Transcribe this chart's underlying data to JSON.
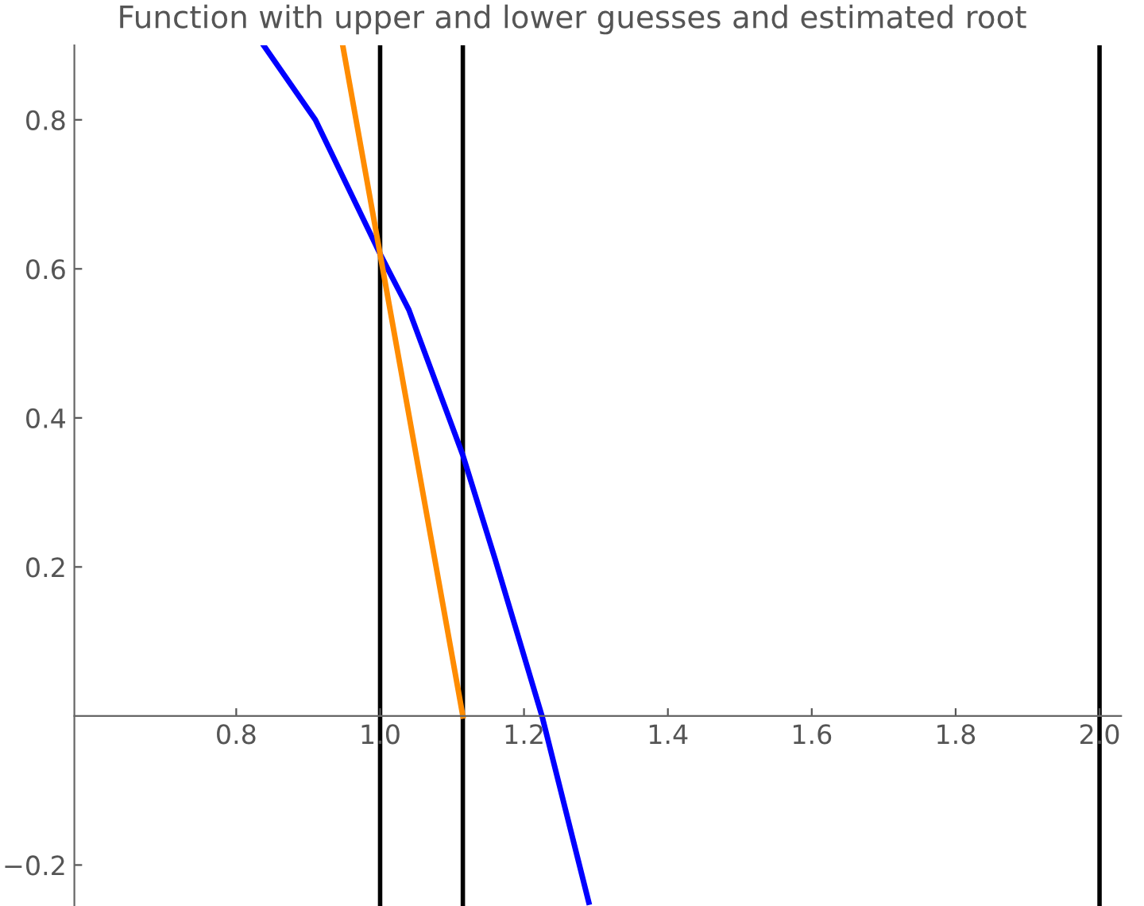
{
  "chart_data": {
    "type": "line",
    "title": "Function with upper and lower guesses and estimated root",
    "series": [
      {
        "color": "#0000ff",
        "x": [
          0.838,
          0.91,
          1.0,
          1.04,
          1.115,
          1.16,
          1.225,
          1.29
        ],
        "values": [
          0.9,
          0.8,
          0.62,
          0.545,
          0.35,
          0.21,
          0,
          -0.25
        ]
      },
      {
        "color": "#ff8c00",
        "x": [
          0.948,
          1.115
        ],
        "values": [
          0.9,
          0
        ]
      }
    ],
    "ref_lines": [
      {
        "axis": "x",
        "value": 1.0,
        "color": "#000000"
      },
      {
        "axis": "x",
        "value": 1.115,
        "color": "#000000"
      },
      {
        "axis": "x",
        "value": 2.0,
        "color": "#000000"
      }
    ],
    "xlim": [
      0.575,
      2.03
    ],
    "ylim": [
      -0.255,
      0.9
    ],
    "xticks": [
      0.8,
      {
        "value": 1.0,
        "label": "1.0"
      },
      1.2,
      1.4,
      1.6,
      1.8,
      {
        "value": 2.0,
        "label": "2.0"
      }
    ],
    "yticks": [
      -0.2,
      0.2,
      0.4,
      0.6,
      0.8
    ],
    "grid": false
  }
}
